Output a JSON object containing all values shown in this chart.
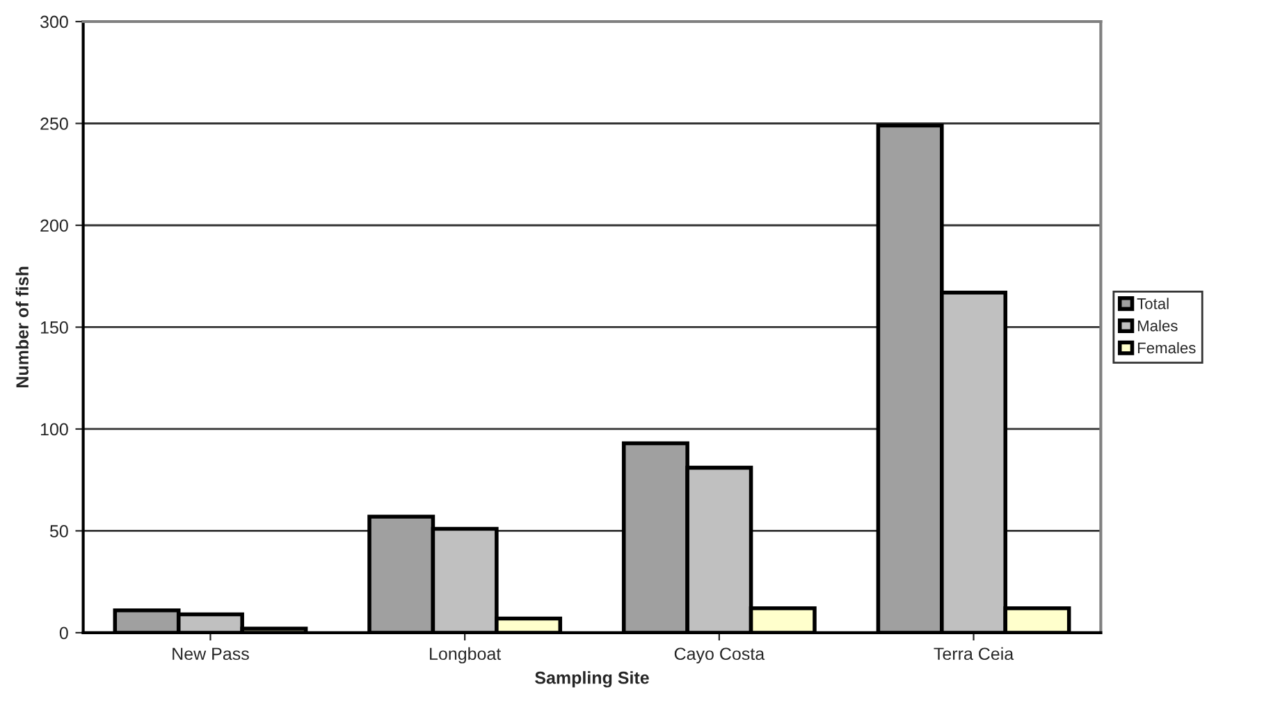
{
  "chart_data": {
    "type": "bar",
    "xlabel": "Sampling Site",
    "ylabel": "Number of fish",
    "categories": [
      "New Pass",
      "Longboat",
      "Cayo Costa",
      "Terra Ceia"
    ],
    "series": [
      {
        "name": "Total",
        "color": "#a0a0a0",
        "values": [
          11,
          57,
          93,
          249
        ]
      },
      {
        "name": "Males",
        "color": "#c0c0c0",
        "values": [
          9,
          51,
          81,
          167
        ]
      },
      {
        "name": "Females",
        "color": "#ffffcc",
        "values": [
          2,
          7,
          12,
          12
        ]
      }
    ],
    "ylim": [
      0,
      300
    ],
    "yticks": [
      0,
      50,
      100,
      150,
      200,
      250,
      300
    ],
    "grid": "y",
    "legend": "right"
  }
}
